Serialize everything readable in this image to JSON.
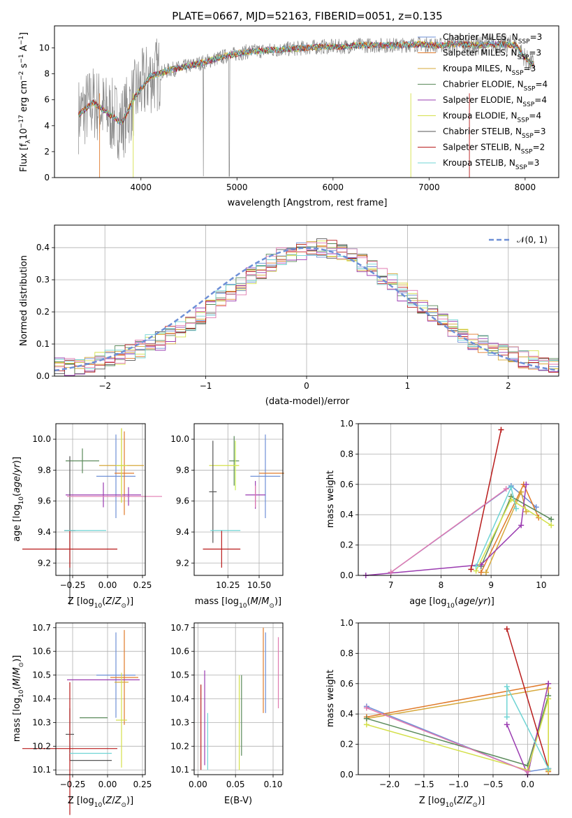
{
  "colors": {
    "chabrier_miles": "#6d8fd6",
    "salpeter_miles": "#e07a2a",
    "kroupa_miles": "#d6a83a",
    "chabrier_elodie": "#5a8a5a",
    "salpeter_elodie": "#9a3bb0",
    "kroupa_elodie": "#d4e04a",
    "chabrier_stelib": "#555555",
    "salpeter_stelib": "#b81c1c",
    "kroupa_stelib": "#6fd4d4",
    "hist_pink": "#e07ab0",
    "data_gray": "#8a8a8a",
    "lime": "#c8f050"
  },
  "chart_data": [
    {
      "type": "line",
      "title": "PLATE=0667, MJD=52163, FIBERID=0051, z=0.135",
      "xlabel": "wavelength [Angstrom, rest frame]",
      "ylabel": "Flux [f",
      "xlim": [
        3100,
        8350
      ],
      "ylim": [
        0,
        11.7
      ],
      "xticks": [
        "4000",
        "5000",
        "6000",
        "7000",
        "8000"
      ],
      "yticks": [
        "0",
        "2",
        "4",
        "6",
        "8",
        "10"
      ],
      "legend_location": "right",
      "legend": [
        {
          "prefix": "Chabrier MILES, N",
          "sub": "SSP",
          "suffix": "=3",
          "color_key": "chabrier_miles"
        },
        {
          "prefix": "Salpeter MILES, N",
          "sub": "SSP",
          "suffix": "=3",
          "color_key": "salpeter_miles"
        },
        {
          "prefix": "Kroupa MILES, N",
          "sub": "SSP",
          "suffix": "=3",
          "color_key": "kroupa_miles"
        },
        {
          "prefix": "Chabrier ELODIE, N",
          "sub": "SSP",
          "suffix": "=4",
          "color_key": "chabrier_elodie"
        },
        {
          "prefix": "Salpeter ELODIE, N",
          "sub": "SSP",
          "suffix": "=4",
          "color_key": "salpeter_elodie"
        },
        {
          "prefix": "Kroupa ELODIE, N",
          "sub": "SSP",
          "suffix": "=4",
          "color_key": "kroupa_elodie"
        },
        {
          "prefix": "Chabrier STELIB, N",
          "sub": "SSP",
          "suffix": "=3",
          "color_key": "chabrier_stelib"
        },
        {
          "prefix": "Salpeter STELIB, N",
          "sub": "SSP",
          "suffix": "=2",
          "color_key": "salpeter_stelib"
        },
        {
          "prefix": "Kroupa STELIB, N",
          "sub": "SSP",
          "suffix": "=3",
          "color_key": "kroupa_stelib"
        }
      ],
      "model_continuum": {
        "x": [
          3350,
          3500,
          3650,
          3800,
          3950,
          4100,
          4300,
          4500,
          4700,
          4900,
          5100,
          5300,
          5500,
          5700,
          5900,
          6100,
          6300,
          6500,
          6700,
          6900,
          7100,
          7300,
          7500,
          7700,
          7900,
          8050
        ],
        "y": [
          4.8,
          5.8,
          5.0,
          4.2,
          6.4,
          7.8,
          8.3,
          8.6,
          9.0,
          9.4,
          9.7,
          9.8,
          9.9,
          10.0,
          10.1,
          10.1,
          10.2,
          10.2,
          10.2,
          10.3,
          10.2,
          10.3,
          10.2,
          10.3,
          10.2,
          8.8
        ]
      }
    },
    {
      "type": "histogram",
      "xlabel": "(data-model)/error",
      "ylabel": "Normed distribution",
      "xlim": [
        -2.5,
        2.5
      ],
      "ylim": [
        0,
        0.47
      ],
      "xticks": [
        "−2",
        "−1",
        "0",
        "1",
        "2"
      ],
      "yticks": [
        "0.0",
        "0.1",
        "0.2",
        "0.3",
        "0.4"
      ],
      "grid": true,
      "legend_location": "top-right",
      "legend": [
        {
          "label": "𝒩(0, 1)"
        }
      ],
      "bin_width": 0.1,
      "bins_start": -2.5,
      "base_values": [
        0.03,
        0.032,
        0.035,
        0.04,
        0.05,
        0.055,
        0.065,
        0.075,
        0.085,
        0.1,
        0.11,
        0.13,
        0.15,
        0.17,
        0.19,
        0.21,
        0.24,
        0.26,
        0.28,
        0.31,
        0.33,
        0.35,
        0.37,
        0.38,
        0.39,
        0.4,
        0.4,
        0.395,
        0.385,
        0.37,
        0.35,
        0.33,
        0.31,
        0.29,
        0.26,
        0.24,
        0.21,
        0.19,
        0.17,
        0.15,
        0.13,
        0.11,
        0.1,
        0.085,
        0.075,
        0.065,
        0.055,
        0.05,
        0.04,
        0.035
      ]
    },
    {
      "type": "errorbar",
      "xlabel": "Z [log",
      "ylabel": "age  [log",
      "xlim": [
        -0.37,
        0.27
      ],
      "ylim": [
        9.12,
        10.1
      ],
      "xticks": [
        "−0.25",
        "0.00",
        "0.25"
      ],
      "yticks": [
        "9.2",
        "9.4",
        "9.6",
        "9.8",
        "10.0"
      ],
      "grid": true,
      "points": [
        {
          "x": 0.06,
          "y": 9.76,
          "xerr": 0.14,
          "yerr": 0.27,
          "color_key": "chabrier_miles"
        },
        {
          "x": 0.12,
          "y": 9.78,
          "xerr": 0.07,
          "yerr": 0.27,
          "color_key": "salpeter_miles"
        },
        {
          "x": 0.1,
          "y": 9.83,
          "xerr": 0.16,
          "yerr": 0.24,
          "color_key": "kroupa_miles"
        },
        {
          "x": -0.18,
          "y": 9.86,
          "xerr": 0.12,
          "yerr": 0.08,
          "color_key": "chabrier_elodie"
        },
        {
          "x": -0.03,
          "y": 9.64,
          "xerr": 0.27,
          "yerr": 0.08,
          "color_key": "salpeter_elodie"
        },
        {
          "x": 0.1,
          "y": 9.83,
          "xerr": 0.04,
          "yerr": 0.24,
          "color_key": "kroupa_elodie"
        },
        {
          "x": -0.27,
          "y": 9.41,
          "xerr": 0.04,
          "yerr": 0.48,
          "color_key": "chabrier_stelib"
        },
        {
          "x": -0.27,
          "y": 9.29,
          "xerr": 0.34,
          "yerr": 0.12,
          "color_key": "salpeter_stelib"
        },
        {
          "x": -0.27,
          "y": 9.41,
          "xerr": 0.04,
          "yerr": 0.0,
          "color_key": "kroupa_stelib"
        },
        {
          "x": 0.15,
          "y": 9.63,
          "xerr": 0.01,
          "yerr": 0.06,
          "color_key": "salpeter_elodie"
        },
        {
          "x": -0.12,
          "y": 9.41,
          "xerr": 0.11,
          "yerr": 0.0,
          "color_key": "kroupa_stelib"
        },
        {
          "x": 0.05,
          "y": 9.63,
          "xerr": 0.34,
          "yerr": 0.0,
          "color_key": "hist_pink"
        }
      ]
    },
    {
      "type": "errorbar",
      "xlabel": "mass [log",
      "ylabel": "",
      "xlim": [
        9.98,
        10.69
      ],
      "ylim": [
        9.12,
        10.1
      ],
      "xticks": [
        "10.25",
        "10.50"
      ],
      "yticks": [
        "9.2",
        "9.4",
        "9.6",
        "9.8",
        "10.0"
      ],
      "grid": true,
      "points": [
        {
          "x": 10.55,
          "y": 9.76,
          "xerr": 0.12,
          "yerr": 0.27,
          "color_key": "chabrier_miles"
        },
        {
          "x": 10.6,
          "y": 9.78,
          "xerr": 0.1,
          "yerr": 0.0,
          "color_key": "salpeter_miles"
        },
        {
          "x": 10.3,
          "y": 9.86,
          "xerr": 0.04,
          "yerr": 0.16,
          "color_key": "chabrier_elodie"
        },
        {
          "x": 10.47,
          "y": 9.64,
          "xerr": 0.08,
          "yerr": 0.09,
          "color_key": "salpeter_elodie"
        },
        {
          "x": 10.22,
          "y": 9.83,
          "xerr": 0.12,
          "yerr": 0.0,
          "color_key": "kroupa_elodie"
        },
        {
          "x": 10.13,
          "y": 9.66,
          "xerr": 0.03,
          "yerr": 0.33,
          "color_key": "chabrier_stelib"
        },
        {
          "x": 10.2,
          "y": 9.29,
          "xerr": 0.15,
          "yerr": 0.12,
          "color_key": "salpeter_stelib"
        },
        {
          "x": 10.23,
          "y": 9.41,
          "xerr": 0.12,
          "yerr": 0.0,
          "color_key": "kroupa_stelib"
        },
        {
          "x": 10.47,
          "y": 9.63,
          "xerr": 0.0,
          "yerr": 0.07,
          "color_key": "hist_pink"
        },
        {
          "x": 10.31,
          "y": 9.83,
          "xerr": 0.0,
          "yerr": 0.16,
          "color_key": "lime"
        }
      ]
    },
    {
      "type": "line",
      "xlabel": "age  [log",
      "ylabel": "mass weight",
      "xlim": [
        6.35,
        10.35
      ],
      "ylim": [
        0,
        1.0
      ],
      "xticks": [
        "7",
        "8",
        "9",
        "10"
      ],
      "yticks": [
        "0.0",
        "0.2",
        "0.4",
        "0.6",
        "0.8",
        "1.0"
      ],
      "grid": true,
      "series": [
        {
          "color_key": "chabrier_miles",
          "x": [
            7.0,
            9.4,
            9.9
          ],
          "y": [
            0.02,
            0.59,
            0.45
          ]
        },
        {
          "color_key": "salpeter_miles",
          "x": [
            8.8,
            9.65,
            9.95
          ],
          "y": [
            0.02,
            0.6,
            0.38
          ]
        },
        {
          "color_key": "kroupa_miles",
          "x": [
            8.9,
            9.6,
            9.7
          ],
          "y": [
            0.02,
            0.55,
            0.42
          ]
        },
        {
          "color_key": "chabrier_elodie",
          "x": [
            8.8,
            9.4,
            10.2
          ],
          "y": [
            0.06,
            0.52,
            0.37
          ]
        },
        {
          "color_key": "salpeter_elodie",
          "x": [
            6.5,
            8.8,
            9.6,
            9.7
          ],
          "y": [
            0.0,
            0.07,
            0.33,
            0.6
          ]
        },
        {
          "color_key": "kroupa_elodie",
          "x": [
            8.7,
            9.4,
            10.2
          ],
          "y": [
            0.03,
            0.5,
            0.33
          ]
        },
        {
          "color_key": "salpeter_stelib",
          "x": [
            8.6,
            9.2
          ],
          "y": [
            0.04,
            0.96
          ]
        },
        {
          "color_key": "kroupa_stelib",
          "x": [
            8.7,
            9.4,
            9.5
          ],
          "y": [
            0.06,
            0.58,
            0.44
          ]
        },
        {
          "color_key": "hist_pink",
          "x": [
            7.0,
            9.3
          ],
          "y": [
            0.02,
            0.57
          ]
        }
      ]
    },
    {
      "type": "errorbar",
      "xlabel": "Z [log",
      "ylabel": "mass [log",
      "xlim": [
        -0.37,
        0.27
      ],
      "ylim": [
        10.08,
        10.72
      ],
      "xticks": [
        "−0.25",
        "0.00",
        "0.25"
      ],
      "yticks": [
        "10.1",
        "10.2",
        "10.3",
        "10.4",
        "10.5",
        "10.6",
        "10.7"
      ],
      "grid": true,
      "points": [
        {
          "x": 0.06,
          "y": 10.5,
          "xerr": 0.14,
          "yerr": 0.18,
          "color_key": "chabrier_miles"
        },
        {
          "x": 0.12,
          "y": 10.49,
          "xerr": 0.1,
          "yerr": 0.2,
          "color_key": "salpeter_miles"
        },
        {
          "x": 0.1,
          "y": 10.47,
          "xerr": 0.05,
          "yerr": 0.0,
          "color_key": "kroupa_miles"
        },
        {
          "x": -0.1,
          "y": 10.32,
          "xerr": 0.1,
          "yerr": 0.0,
          "color_key": "chabrier_elodie"
        },
        {
          "x": -0.03,
          "y": 10.48,
          "xerr": 0.26,
          "yerr": 0.0,
          "color_key": "salpeter_elodie"
        },
        {
          "x": 0.1,
          "y": 10.31,
          "xerr": 0.04,
          "yerr": 0.2,
          "color_key": "kroupa_elodie"
        },
        {
          "x": -0.27,
          "y": 10.25,
          "xerr": 0.03,
          "yerr": 0.11,
          "color_key": "chabrier_stelib"
        },
        {
          "x": -0.12,
          "y": 10.14,
          "xerr": 0.15,
          "yerr": 0.0,
          "color_key": "chabrier_stelib"
        },
        {
          "x": -0.27,
          "y": 10.19,
          "xerr": 0.34,
          "yerr": 0.28,
          "color_key": "salpeter_stelib"
        },
        {
          "x": -0.12,
          "y": 10.17,
          "xerr": 0.15,
          "yerr": 0.0,
          "color_key": "kroupa_stelib"
        },
        {
          "x": 0.1,
          "y": 10.47,
          "xerr": 0.0,
          "yerr": 0.0,
          "color_key": "hist_pink"
        }
      ]
    },
    {
      "type": "errorbar",
      "xlabel": "E(B-V)",
      "ylabel": "",
      "xlim": [
        -0.005,
        0.113
      ],
      "ylim": [
        10.08,
        10.72
      ],
      "xticks": [
        "0.00",
        "0.05",
        "0.10"
      ],
      "yticks": [
        "10.1",
        "10.2",
        "10.3",
        "10.4",
        "10.5",
        "10.6",
        "10.7"
      ],
      "grid": true,
      "points": [
        {
          "x": 0.004,
          "y": 10.28,
          "yerr": 0.18,
          "color_key": "salpeter_stelib"
        },
        {
          "x": 0.009,
          "y": 10.32,
          "yerr": 0.2,
          "color_key": "salpeter_elodie"
        },
        {
          "x": 0.013,
          "y": 10.22,
          "yerr": 0.12,
          "color_key": "kroupa_stelib"
        },
        {
          "x": 0.055,
          "y": 10.3,
          "yerr": 0.2,
          "color_key": "kroupa_elodie"
        },
        {
          "x": 0.058,
          "y": 10.33,
          "yerr": 0.17,
          "color_key": "chabrier_elodie"
        },
        {
          "x": 0.087,
          "y": 10.52,
          "yerr": 0.18,
          "color_key": "salpeter_miles"
        },
        {
          "x": 0.09,
          "y": 10.51,
          "yerr": 0.17,
          "color_key": "chabrier_miles"
        },
        {
          "x": 0.107,
          "y": 10.51,
          "yerr": 0.15,
          "color_key": "hist_pink"
        }
      ]
    },
    {
      "type": "line",
      "xlabel": "Z [log",
      "ylabel": "mass weight",
      "xlim": [
        -2.45,
        0.45
      ],
      "ylim": [
        0,
        1.0
      ],
      "xticks": [
        "−2.0",
        "−1.5",
        "−1.0",
        "−0.5",
        "0.0"
      ],
      "yticks": [
        "0.0",
        "0.2",
        "0.4",
        "0.6",
        "0.8",
        "1.0"
      ],
      "grid": true,
      "series": [
        {
          "color_key": "chabrier_miles",
          "x": [
            -2.33,
            0.0,
            0.3
          ],
          "y": [
            0.45,
            0.02,
            0.04
          ]
        },
        {
          "color_key": "salpeter_miles",
          "x": [
            -2.33,
            0.3,
            0.3
          ],
          "y": [
            0.38,
            0.6,
            0.02
          ]
        },
        {
          "color_key": "kroupa_miles",
          "x": [
            -2.33,
            0.3
          ],
          "y": [
            0.37,
            0.57
          ]
        },
        {
          "color_key": "chabrier_elodie",
          "x": [
            -2.33,
            0.0,
            0.3
          ],
          "y": [
            0.37,
            0.06,
            0.52
          ]
        },
        {
          "color_key": "salpeter_elodie",
          "x": [
            -0.3,
            0.0,
            0.3
          ],
          "y": [
            0.33,
            0.0,
            0.6
          ]
        },
        {
          "color_key": "kroupa_elodie",
          "x": [
            -2.33,
            0.0,
            0.3,
            0.3
          ],
          "y": [
            0.33,
            0.03,
            0.5,
            0.03
          ]
        },
        {
          "color_key": "salpeter_stelib",
          "x": [
            -0.3,
            0.3
          ],
          "y": [
            0.96,
            0.04
          ]
        },
        {
          "color_key": "kroupa_stelib",
          "x": [
            -0.3,
            -0.3,
            0.3
          ],
          "y": [
            0.38,
            0.58,
            0.04
          ]
        },
        {
          "color_key": "hist_pink",
          "x": [
            -2.33,
            0.0
          ],
          "y": [
            0.44,
            0.02
          ]
        }
      ]
    }
  ]
}
